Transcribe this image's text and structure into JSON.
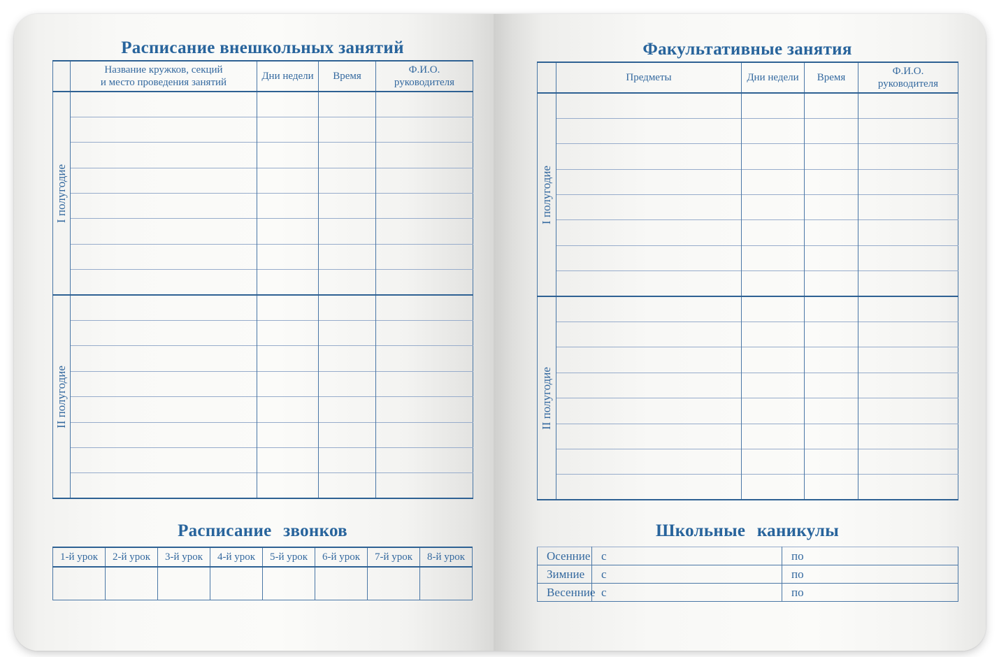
{
  "colors": {
    "rule_thick": "#2e6193",
    "rule_vertical": "#4a77a6",
    "rule_thin": "#97accb",
    "ink_blue": "#34699f"
  },
  "left_page": {
    "title": "Расписание внешкольных занятий",
    "schedule_table": {
      "column_headers": [
        "Название кружков, секций\nи место проведения занятий",
        "Дни недели",
        "Время",
        "Ф.И.О.\nруководителя"
      ],
      "sections": [
        {
          "label": "I полугодие",
          "rows": 8
        },
        {
          "label": "II полугодие",
          "rows": 8
        }
      ]
    },
    "bells": {
      "title": "Расписание звонков",
      "column_headers": [
        "1-й урок",
        "2-й урок",
        "3-й урок",
        "4-й урок",
        "5-й урок",
        "6-й урок",
        "7-й урок",
        "8-й урок"
      ]
    }
  },
  "right_page": {
    "title": "Факультативные занятия",
    "schedule_table": {
      "column_headers": [
        "Предметы",
        "Дни недели",
        "Время",
        "Ф.И.О.\nруководителя"
      ],
      "sections": [
        {
          "label": "I полугодие",
          "rows": 8
        },
        {
          "label": "II полугодие",
          "rows": 8
        }
      ]
    },
    "holidays": {
      "title": "Школьные каникулы",
      "rows": [
        {
          "season": "Осенние",
          "from_label": "с",
          "to_label": "по"
        },
        {
          "season": "Зимние",
          "from_label": "с",
          "to_label": "по"
        },
        {
          "season": "Весенние",
          "from_label": "с",
          "to_label": "по"
        }
      ]
    }
  }
}
